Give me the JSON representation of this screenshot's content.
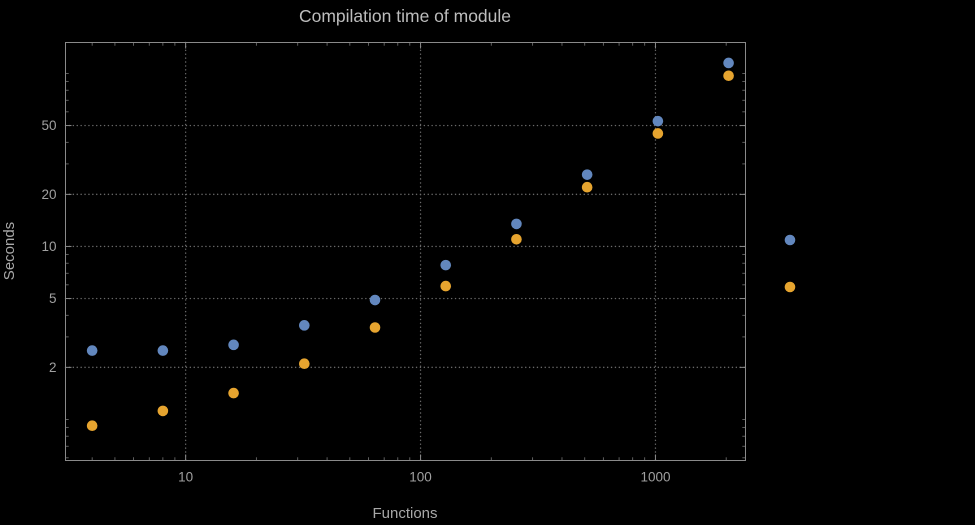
{
  "chart_data": {
    "type": "scatter",
    "title": "Compilation time of module",
    "xlabel": "Functions",
    "ylabel": "Seconds",
    "x_scale": "log",
    "y_scale": "log",
    "grid": "dotted gridlines at major ticks",
    "x": [
      4,
      8,
      16,
      32,
      64,
      128,
      256,
      512,
      1024,
      2048
    ],
    "series": [
      {
        "name": "blue",
        "color": "#6287BE",
        "values": [
          2.5,
          2.5,
          2.7,
          3.5,
          4.9,
          7.8,
          13.5,
          26,
          53,
          115
        ]
      },
      {
        "name": "orange",
        "color": "#E6A42F",
        "values": [
          0.92,
          1.12,
          1.42,
          2.1,
          3.4,
          5.9,
          11,
          22,
          45,
          97
        ]
      }
    ],
    "x_ticks": [
      10,
      100,
      1000
    ],
    "y_ticks": [
      2,
      5,
      10,
      20,
      50
    ],
    "xlim": [
      3.08,
      2417
    ],
    "ylim": [
      0.579,
      151
    ],
    "legend": {
      "position": "right-of-plot",
      "labels_visible": false,
      "marker_colors": [
        "#6287BE",
        "#E6A42F"
      ]
    }
  },
  "style": {
    "background": "#000000",
    "frame_color": "#8a8a8a",
    "grid_color": "#6a6a6a",
    "title_color": "#bdbdbd",
    "label_color": "#a8a8a8",
    "tick_label_color": "#a0a0a0"
  }
}
